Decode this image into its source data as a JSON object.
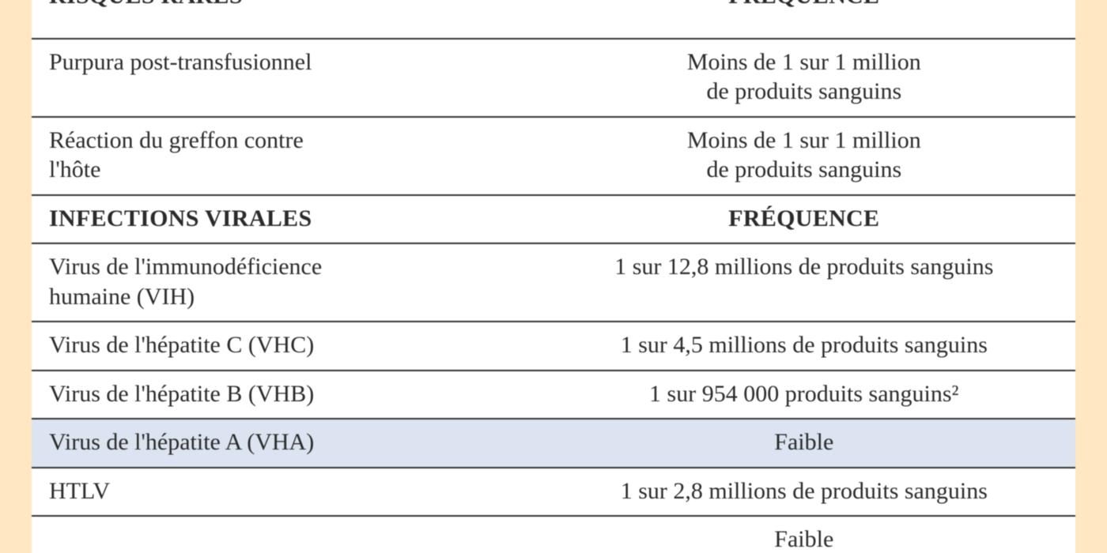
{
  "colors": {
    "page_bg": "#ffe7c2",
    "table_bg": "#ffffff",
    "pale_row_bg": "#dbe4f0",
    "rule": "#333333",
    "text": "#2b2b2b"
  },
  "typography": {
    "family": "Georgia / Times New Roman, serif",
    "body_pt": 30,
    "header_pt": 30,
    "header_weight": 700
  },
  "table": {
    "column_widths_pct": [
      48,
      52
    ],
    "sections": [
      {
        "header": {
          "left": "RISQUES RARES",
          "right": "FRÉQUENCE"
        },
        "header_cropped_top": true,
        "rows": [
          {
            "left": "Purpura post-transfusionnel",
            "right": "Moins de 1 sur 1 million\nde produits sanguins"
          },
          {
            "left": "Réaction du greffon contre\nl'hôte",
            "right": "Moins de 1 sur 1 million\nde produits sanguins"
          }
        ]
      },
      {
        "header": {
          "left": "INFECTIONS VIRALES",
          "right": "FRÉQUENCE"
        },
        "rows": [
          {
            "left": "Virus de l'immunodéficience\nhumaine (VIH)",
            "right": "1 sur 12,8 millions de produits sanguins"
          },
          {
            "left": "Virus de l'hépatite C (VHC)",
            "right": "1 sur 4,5 millions de produits sanguins"
          },
          {
            "left": "Virus de l'hépatite B (VHB)",
            "right": "1 sur 954 000 produits sanguins²"
          },
          {
            "left": "Virus de l'hépatite A (VHA)",
            "right": "Faible",
            "pale": true
          },
          {
            "left": "HTLV",
            "right": "1 sur 2,8 millions de produits sanguins"
          }
        ]
      }
    ],
    "cropped_next_row": {
      "left": "",
      "right": "Faible"
    }
  }
}
